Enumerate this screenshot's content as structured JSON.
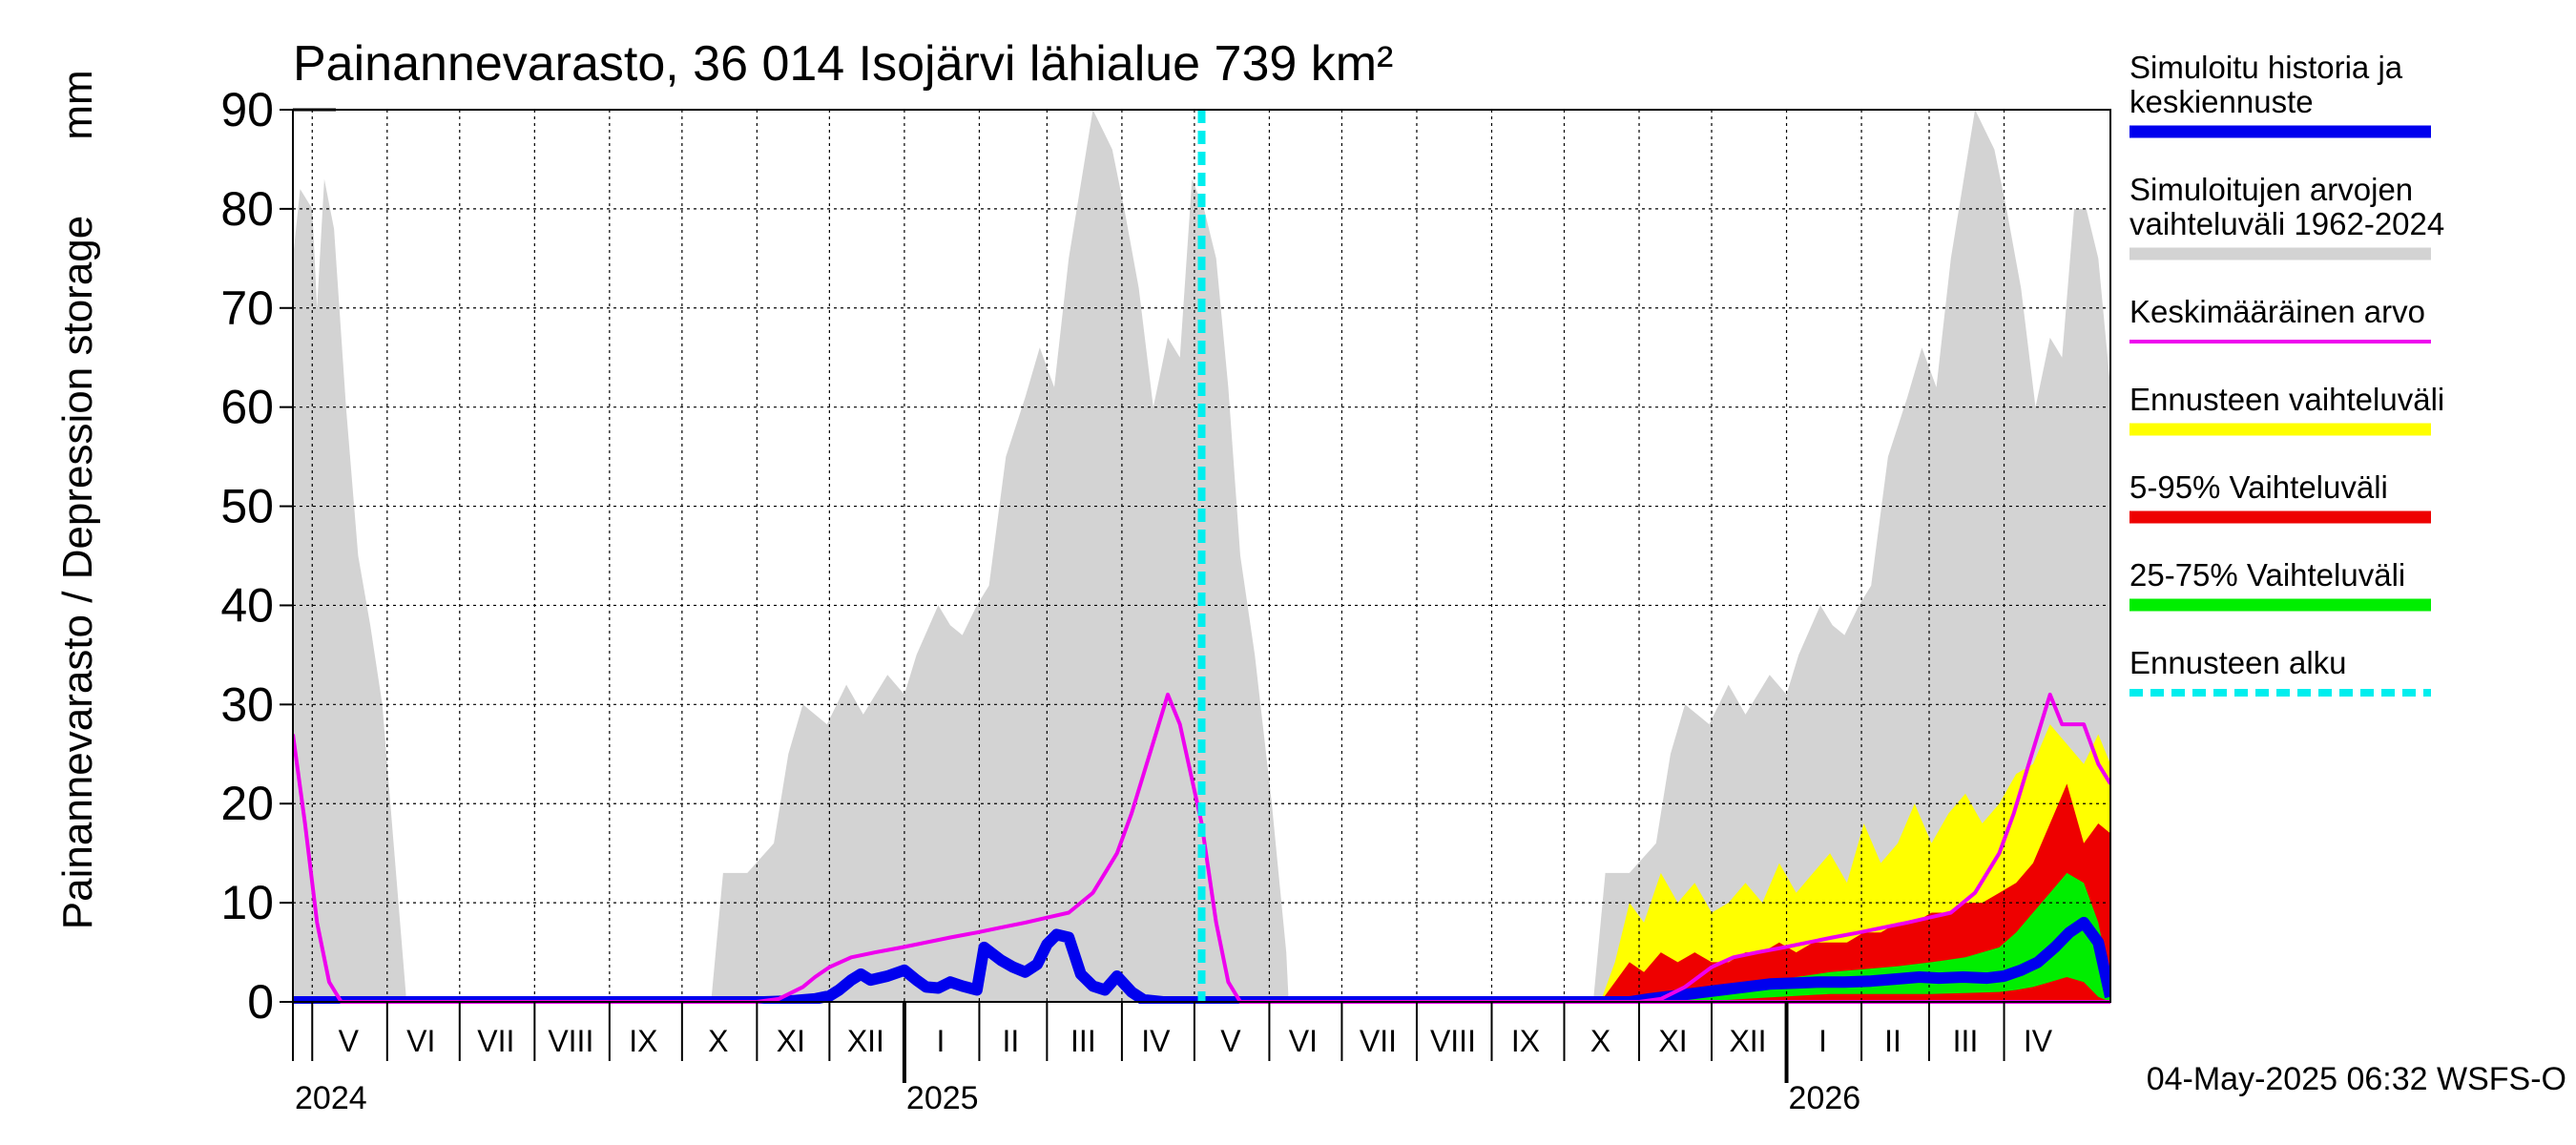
{
  "chart_data": {
    "type": "area",
    "title": "Painannevarasto, 36 014 Isojärvi lähialue 739 km²",
    "ylabel": "Painannevarasto / Depression storage",
    "yunit": "mm",
    "ylim": [
      0,
      90
    ],
    "yticks": [
      0,
      10,
      20,
      30,
      40,
      50,
      60,
      70,
      80,
      90
    ],
    "grid": true,
    "legend_position": "right",
    "xlim": [
      "2024-04-23",
      "2026-05-15"
    ],
    "month_labels": [
      {
        "label": "V",
        "date": "2024-05-16"
      },
      {
        "label": "VI",
        "date": "2024-06-15"
      },
      {
        "label": "VII",
        "date": "2024-07-16"
      },
      {
        "label": "VIII",
        "date": "2024-08-16"
      },
      {
        "label": "IX",
        "date": "2024-09-15"
      },
      {
        "label": "X",
        "date": "2024-10-16"
      },
      {
        "label": "XI",
        "date": "2024-11-15"
      },
      {
        "label": "XII",
        "date": "2024-12-16"
      },
      {
        "label": "I",
        "date": "2025-01-16"
      },
      {
        "label": "II",
        "date": "2025-02-14"
      },
      {
        "label": "III",
        "date": "2025-03-16"
      },
      {
        "label": "IV",
        "date": "2025-04-15"
      },
      {
        "label": "V",
        "date": "2025-05-16"
      },
      {
        "label": "VI",
        "date": "2025-06-15"
      },
      {
        "label": "VII",
        "date": "2025-07-16"
      },
      {
        "label": "VIII",
        "date": "2025-08-16"
      },
      {
        "label": "IX",
        "date": "2025-09-15"
      },
      {
        "label": "X",
        "date": "2025-10-16"
      },
      {
        "label": "XI",
        "date": "2025-11-15"
      },
      {
        "label": "XII",
        "date": "2025-12-16"
      },
      {
        "label": "I",
        "date": "2026-01-16"
      },
      {
        "label": "II",
        "date": "2026-02-14"
      },
      {
        "label": "III",
        "date": "2026-03-16"
      },
      {
        "label": "IV",
        "date": "2026-04-15"
      }
    ],
    "year_labels": [
      {
        "label": "2024",
        "date": "2024-05-01"
      },
      {
        "label": "2025",
        "date": "2025-01-01"
      },
      {
        "label": "2026",
        "date": "2026-01-01"
      }
    ],
    "forecast_start": "2025-05-04",
    "footer": "04-May-2025 06:32 WSFS-O",
    "legend": [
      {
        "label": "Simuloitu historia ja",
        "label2": "keskiennuste",
        "color": "#0000ee",
        "style": "solid"
      },
      {
        "label": "Simuloitujen arvojen",
        "label2": "vaihteluväli 1962-2024",
        "color": "#d3d3d3",
        "style": "solid"
      },
      {
        "label": "Keskimääräinen arvo",
        "label2": "",
        "color": "#ee00ee",
        "style": "thin"
      },
      {
        "label": "Ennusteen vaihteluväli",
        "label2": "",
        "color": "#ffff00",
        "style": "solid"
      },
      {
        "label": "5-95% Vaihteluväli",
        "label2": "",
        "color": "#ee0000",
        "style": "solid"
      },
      {
        "label": "25-75% Vaihteluväli",
        "label2": "",
        "color": "#00ee00",
        "style": "solid"
      },
      {
        "label": "Ennusteen alku",
        "label2": "",
        "color": "#00eeee",
        "style": "dashed"
      }
    ],
    "series": [
      {
        "name": "Simuloitujen arvojen vaihteluväli 1962-2024",
        "color": "#d3d3d3",
        "x": [
          "2024-04-23",
          "2024-04-26",
          "2024-05-01",
          "2024-05-03",
          "2024-05-06",
          "2024-05-10",
          "2024-05-15",
          "2024-05-20",
          "2024-05-25",
          "2024-05-30",
          "2024-06-04",
          "2024-06-09",
          "2024-10-13",
          "2024-10-18",
          "2024-10-28",
          "2024-11-08",
          "2024-11-14",
          "2024-11-20",
          "2024-11-30",
          "2024-12-08",
          "2024-12-15",
          "2024-12-25",
          "2025-01-01",
          "2025-01-06",
          "2025-01-15",
          "2025-01-20",
          "2025-01-25",
          "2025-01-31",
          "2025-02-05",
          "2025-02-12",
          "2025-02-20",
          "2025-02-26",
          "2025-03-04",
          "2025-03-10",
          "2025-03-20",
          "2025-03-28",
          "2025-04-02",
          "2025-04-08",
          "2025-04-14",
          "2025-04-20",
          "2025-04-25",
          "2025-04-30",
          "2025-05-05",
          "2025-05-10",
          "2025-05-15",
          "2025-05-20",
          "2025-05-26",
          "2025-06-02",
          "2025-06-08",
          "2025-06-09",
          "2025-10-13",
          "2025-10-18",
          "2025-10-28",
          "2025-11-08",
          "2025-11-14",
          "2025-11-20",
          "2025-11-30",
          "2025-12-08",
          "2025-12-15",
          "2025-12-25",
          "2026-01-01",
          "2026-01-06",
          "2026-01-15",
          "2026-01-20",
          "2026-01-25",
          "2026-01-31",
          "2026-02-05",
          "2026-02-12",
          "2026-02-20",
          "2026-02-26",
          "2026-03-04",
          "2026-03-10",
          "2026-03-20",
          "2026-03-28",
          "2026-04-02",
          "2026-04-08",
          "2026-04-14",
          "2026-04-20",
          "2026-04-25",
          "2026-04-30",
          "2026-05-05",
          "2026-05-10",
          "2026-05-15"
        ],
        "upper": [
          75,
          82,
          80,
          70,
          83,
          78,
          60,
          45,
          38,
          30,
          15,
          0,
          0,
          13,
          13,
          16,
          25,
          30,
          28,
          32,
          29,
          33,
          31,
          35,
          40,
          38,
          37,
          40,
          42,
          55,
          61,
          66,
          62,
          75,
          90,
          86,
          80,
          72,
          60,
          67,
          65,
          83,
          80,
          75,
          62,
          45,
          35,
          20,
          5,
          0,
          0,
          13,
          13,
          16,
          25,
          30,
          28,
          32,
          29,
          33,
          31,
          35,
          40,
          38,
          37,
          40,
          42,
          55,
          61,
          66,
          62,
          75,
          90,
          86,
          80,
          72,
          60,
          67,
          65,
          80,
          80,
          75,
          62
        ],
        "lower": [
          0,
          0,
          0,
          0,
          0,
          0,
          0,
          0,
          0,
          0,
          0,
          0,
          0,
          0,
          0,
          0,
          0,
          0,
          0,
          0,
          0,
          0,
          0,
          0,
          0,
          0,
          0,
          0,
          0,
          0,
          0,
          0,
          0,
          0,
          0,
          0,
          0,
          0,
          0,
          0,
          0,
          0,
          0,
          0,
          0,
          0,
          0,
          0,
          0,
          0,
          0,
          0,
          0,
          0,
          0,
          0,
          0,
          0,
          0,
          0,
          0,
          0,
          0,
          0,
          0,
          0,
          0,
          0,
          0,
          0,
          0,
          0,
          0,
          0,
          0,
          0,
          0,
          0,
          0,
          0,
          0,
          0,
          0
        ]
      },
      {
        "name": "Ennusteen vaihteluväli",
        "color": "#ffff00",
        "x": [
          "2025-10-16",
          "2025-10-22",
          "2025-10-28",
          "2025-11-03",
          "2025-11-10",
          "2025-11-17",
          "2025-11-24",
          "2025-12-01",
          "2025-12-08",
          "2025-12-15",
          "2025-12-22",
          "2025-12-29",
          "2026-01-05",
          "2026-01-12",
          "2026-01-19",
          "2026-01-26",
          "2026-02-02",
          "2026-02-09",
          "2026-02-16",
          "2026-02-23",
          "2026-03-02",
          "2026-03-09",
          "2026-03-16",
          "2026-03-23",
          "2026-03-30",
          "2026-04-06",
          "2026-04-13",
          "2026-04-20",
          "2026-04-27",
          "2026-05-04",
          "2026-05-10",
          "2026-05-15"
        ],
        "upper": [
          0,
          4,
          10,
          8,
          13,
          10,
          12,
          9,
          10,
          12,
          10,
          14,
          11,
          13,
          15,
          12,
          18,
          14,
          16,
          20,
          16,
          19,
          21,
          18,
          20,
          23,
          24,
          28,
          26,
          24,
          27,
          24
        ],
        "lower": [
          0,
          0,
          0,
          0,
          0,
          0,
          0,
          0,
          0,
          0,
          0,
          0,
          0,
          0,
          0,
          0,
          0,
          0,
          0,
          0,
          0,
          0,
          0,
          0,
          0,
          0,
          0,
          0,
          0,
          0,
          0,
          0
        ]
      },
      {
        "name": "5-95% Vaihteluväli",
        "color": "#ee0000",
        "x": [
          "2025-10-16",
          "2025-10-22",
          "2025-10-28",
          "2025-11-03",
          "2025-11-10",
          "2025-11-17",
          "2025-11-24",
          "2025-12-01",
          "2025-12-08",
          "2025-12-15",
          "2025-12-22",
          "2025-12-29",
          "2026-01-05",
          "2026-01-12",
          "2026-01-19",
          "2026-01-26",
          "2026-02-02",
          "2026-02-09",
          "2026-02-16",
          "2026-02-23",
          "2026-03-02",
          "2026-03-09",
          "2026-03-16",
          "2026-03-23",
          "2026-03-30",
          "2026-04-06",
          "2026-04-13",
          "2026-04-20",
          "2026-04-27",
          "2026-05-04",
          "2026-05-10",
          "2026-05-15"
        ],
        "upper": [
          0,
          2,
          4,
          3,
          5,
          4,
          5,
          4,
          4,
          5,
          5,
          6,
          5,
          6,
          6,
          6,
          7,
          7,
          8,
          8,
          9,
          9,
          10,
          10,
          11,
          12,
          14,
          18,
          22,
          16,
          18,
          17
        ],
        "lower": [
          0,
          0,
          0,
          0,
          0,
          0,
          0,
          0,
          0,
          0,
          0,
          0,
          0,
          0,
          0,
          0,
          0,
          0,
          0,
          0,
          0,
          0,
          0,
          0,
          0,
          0,
          0,
          0,
          0,
          0,
          0,
          0
        ]
      },
      {
        "name": "25-75% Vaihteluväli",
        "color": "#00ee00",
        "x": [
          "2025-10-16",
          "2025-10-28",
          "2025-11-10",
          "2025-11-24",
          "2025-12-08",
          "2025-12-22",
          "2026-01-05",
          "2026-01-19",
          "2026-02-02",
          "2026-02-16",
          "2026-03-02",
          "2026-03-16",
          "2026-03-30",
          "2026-04-06",
          "2026-04-13",
          "2026-04-20",
          "2026-04-27",
          "2026-05-04",
          "2026-05-10",
          "2026-05-15"
        ],
        "upper": [
          0,
          0.3,
          0.6,
          1.0,
          1.5,
          2.0,
          2.5,
          3.0,
          3.3,
          3.6,
          4.0,
          4.5,
          5.5,
          7.0,
          9.0,
          11.0,
          13.0,
          12.0,
          8.0,
          2.0
        ],
        "lower": [
          0,
          0,
          0,
          0,
          0.2,
          0.4,
          0.6,
          0.8,
          0.8,
          0.8,
          0.8,
          0.9,
          1.0,
          1.2,
          1.5,
          2.0,
          2.5,
          2.0,
          0.5,
          0
        ]
      },
      {
        "name": "Simuloitu historia ja keskiennuste",
        "color": "#0000ee",
        "x": [
          "2024-04-23",
          "2024-11-04",
          "2024-11-15",
          "2024-11-25",
          "2024-12-01",
          "2024-12-05",
          "2024-12-10",
          "2024-12-14",
          "2024-12-18",
          "2024-12-25",
          "2025-01-01",
          "2025-01-06",
          "2025-01-10",
          "2025-01-15",
          "2025-01-20",
          "2025-01-25",
          "2025-01-31",
          "2025-02-03",
          "2025-02-10",
          "2025-02-15",
          "2025-02-20",
          "2025-02-25",
          "2025-03-01",
          "2025-03-05",
          "2025-03-10",
          "2025-03-15",
          "2025-03-20",
          "2025-03-25",
          "2025-03-30",
          "2025-04-05",
          "2025-04-10",
          "2025-04-18",
          "2025-05-04",
          "2025-10-28",
          "2025-11-05",
          "2025-11-15",
          "2025-11-25",
          "2025-12-05",
          "2025-12-15",
          "2025-12-25",
          "2026-01-05",
          "2026-01-15",
          "2026-01-25",
          "2026-02-05",
          "2026-02-15",
          "2026-02-25",
          "2026-03-05",
          "2026-03-15",
          "2026-03-25",
          "2026-04-01",
          "2026-04-08",
          "2026-04-15",
          "2026-04-22",
          "2026-04-28",
          "2026-05-04",
          "2026-05-10",
          "2026-05-15"
        ],
        "values": [
          0,
          0,
          0.1,
          0.3,
          0.6,
          1.2,
          2.2,
          2.8,
          2.2,
          2.6,
          3.2,
          2.2,
          1.5,
          1.4,
          2.0,
          1.6,
          1.2,
          5.5,
          4.2,
          3.5,
          3.0,
          3.8,
          5.8,
          6.8,
          6.5,
          2.8,
          1.6,
          1.2,
          2.6,
          1.0,
          0.2,
          0,
          0,
          0,
          0.3,
          0.6,
          0.9,
          1.2,
          1.5,
          1.8,
          1.9,
          2.0,
          2.0,
          2.1,
          2.3,
          2.5,
          2.4,
          2.5,
          2.4,
          2.6,
          3.2,
          4.0,
          5.5,
          7.0,
          8.0,
          6.0,
          0.5
        ]
      },
      {
        "name": "Keskimääräinen arvo",
        "color": "#ee00ee",
        "x": [
          "2024-04-23",
          "2024-04-28",
          "2024-05-03",
          "2024-05-08",
          "2024-05-13",
          "2024-10-15",
          "2024-11-01",
          "2024-11-10",
          "2024-11-20",
          "2024-11-25",
          "2024-12-01",
          "2024-12-10",
          "2024-12-20",
          "2024-12-31",
          "2025-01-10",
          "2025-01-20",
          "2025-01-31",
          "2025-02-10",
          "2025-02-20",
          "2025-03-01",
          "2025-03-10",
          "2025-03-20",
          "2025-03-25",
          "2025-03-30",
          "2025-04-05",
          "2025-04-10",
          "2025-04-15",
          "2025-04-20",
          "2025-04-25",
          "2025-05-04",
          "2025-05-10",
          "2025-05-15",
          "2025-05-20",
          "2026-05-15"
        ],
        "values": [
          27,
          18,
          8,
          2,
          0,
          0,
          0,
          0.3,
          1.5,
          2.5,
          3.5,
          4.5,
          5.0,
          5.5,
          6.0,
          6.5,
          7.0,
          7.5,
          8.0,
          8.5,
          9.0,
          11,
          13,
          15,
          19,
          23,
          27,
          31,
          28,
          18,
          8,
          2,
          0,
          0
        ]
      },
      {
        "name": "Keskimääräinen arvo (ennustejakso)",
        "color": "#ee00ee",
        "x": [
          "2025-11-01",
          "2025-11-10",
          "2025-11-20",
          "2025-12-01",
          "2025-12-10",
          "2025-12-20",
          "2025-12-31",
          "2026-01-10",
          "2026-01-20",
          "2026-01-31",
          "2026-02-10",
          "2026-02-20",
          "2026-03-01",
          "2026-03-10",
          "2026-03-20",
          "2026-03-25",
          "2026-03-30",
          "2026-04-05",
          "2026-04-10",
          "2026-04-15",
          "2026-04-20",
          "2026-04-25",
          "2026-05-04",
          "2026-05-10",
          "2026-05-15"
        ],
        "values": [
          0,
          0.3,
          1.5,
          3.5,
          4.5,
          5.0,
          5.5,
          6.0,
          6.5,
          7.0,
          7.5,
          8.0,
          8.5,
          9.0,
          11,
          13,
          15,
          19,
          23,
          27,
          31,
          28,
          28,
          24,
          22
        ]
      }
    ]
  }
}
